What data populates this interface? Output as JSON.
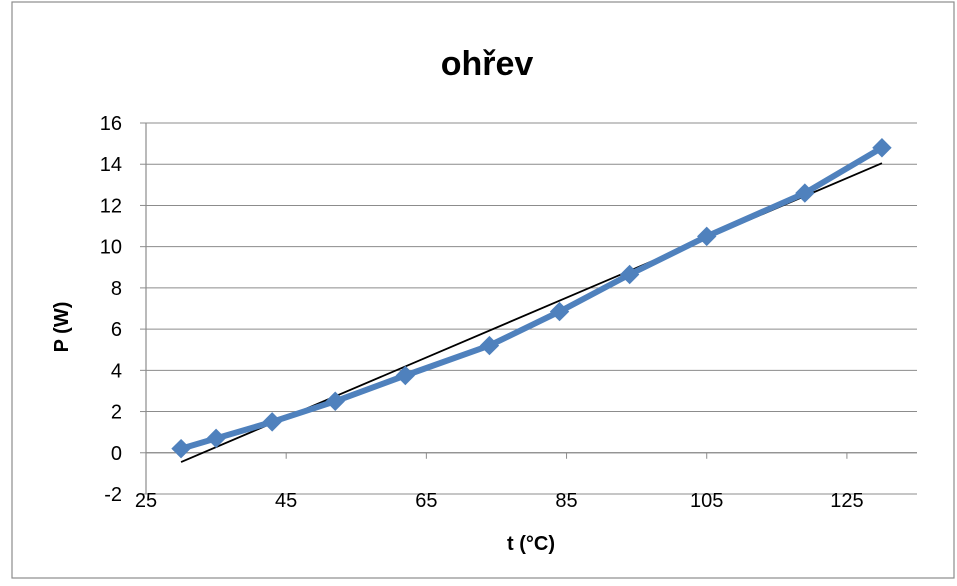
{
  "chart_data": {
    "type": "line",
    "title": "ohřev",
    "xlabel": "t (°C)",
    "ylabel": "P (W)",
    "xlim": [
      25,
      135
    ],
    "ylim": [
      -2,
      16
    ],
    "x_ticks": [
      "25",
      "45",
      "65",
      "85",
      "105",
      "125"
    ],
    "y_ticks": [
      "-2",
      "0",
      "2",
      "4",
      "6",
      "8",
      "10",
      "12",
      "14",
      "16"
    ],
    "grid": "horizontal",
    "legend": "none",
    "series": [
      {
        "color": "#4F81BD",
        "marker": "diamond",
        "x": [
          30,
          35,
          43,
          52,
          62,
          74,
          84,
          94,
          105,
          119,
          130
        ],
        "y": [
          0.2,
          0.7,
          1.5,
          2.5,
          3.75,
          5.2,
          6.85,
          8.65,
          10.5,
          12.6,
          14.8
        ]
      }
    ],
    "trendline": {
      "color": "#000000",
      "x": [
        30,
        130
      ],
      "y": [
        -0.45,
        14.05
      ]
    }
  }
}
